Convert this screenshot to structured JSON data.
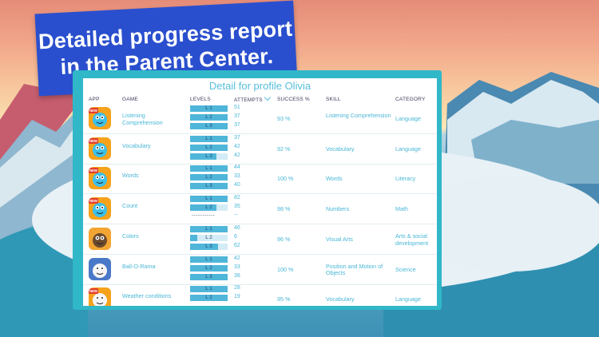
{
  "banner": {
    "line1": "Detailed progress report",
    "line2": "in the Parent Center."
  },
  "report": {
    "title": "Detail for profile Olivia",
    "headers": {
      "app": "APP",
      "game": "GAME",
      "levels": "LEVELS",
      "attempts": "ATTEMPTS",
      "success": "SUCCESS %",
      "skill": "SKILL",
      "category": "CATEGORY"
    },
    "rows": [
      {
        "game": "Listening Comprehension",
        "icon": "fish-character-icon",
        "badge": "NEW",
        "levels": [
          {
            "label": "L 1",
            "progress": 1.0,
            "attempts": "51"
          },
          {
            "label": "L 2",
            "progress": 1.0,
            "attempts": "37"
          },
          {
            "label": "L 3",
            "progress": 1.0,
            "attempts": "37"
          }
        ],
        "success": "93 %",
        "skill": "Listening Comprehension",
        "category": "Language"
      },
      {
        "game": "Vocabulary",
        "icon": "fish-character-icon",
        "badge": "NEW",
        "levels": [
          {
            "label": "L 1",
            "progress": 1.0,
            "attempts": "37"
          },
          {
            "label": "L 2",
            "progress": 1.0,
            "attempts": "42"
          },
          {
            "label": "L 3",
            "progress": 0.7,
            "attempts": "42"
          }
        ],
        "success": "92 %",
        "skill": "Vocabulary",
        "category": "Language"
      },
      {
        "game": "Words",
        "icon": "fish-character-icon",
        "badge": "NEW",
        "levels": [
          {
            "label": "L 1",
            "progress": 1.0,
            "attempts": "44"
          },
          {
            "label": "L 2",
            "progress": 1.0,
            "attempts": "33"
          },
          {
            "label": "L 3",
            "progress": 1.0,
            "attempts": "40"
          }
        ],
        "success": "100 %",
        "skill": "Words",
        "category": "Literacy"
      },
      {
        "game": "Count",
        "icon": "fish-character-icon",
        "badge": "NEW",
        "levels": [
          {
            "label": "L 1",
            "progress": 1.0,
            "attempts": "82"
          },
          {
            "label": "L 2",
            "progress": 0.7,
            "attempts": "35"
          }
        ],
        "no_level": {
          "label": "-----------",
          "attempts": "--"
        },
        "success": "98 %",
        "skill": "Numbers",
        "category": "Math"
      },
      {
        "game": "Colors",
        "icon": "girl-character-icon",
        "badge": "",
        "levels": [
          {
            "label": "L 1",
            "progress": 1.0,
            "attempts": "46"
          },
          {
            "label": "L 2",
            "progress": 0.2,
            "attempts": "6"
          },
          {
            "label": "L 3",
            "progress": 0.75,
            "attempts": "62"
          }
        ],
        "success": "96 %",
        "skill": "Visual Arts",
        "category": "Arts & social development"
      },
      {
        "game": "Ball-O-Rama",
        "icon": "bunnies-character-icon",
        "badge": "",
        "levels": [
          {
            "label": "L 1",
            "progress": 1.0,
            "attempts": "42"
          },
          {
            "label": "L 2",
            "progress": 1.0,
            "attempts": "33"
          },
          {
            "label": "L 3",
            "progress": 1.0,
            "attempts": "38"
          }
        ],
        "success": "100 %",
        "skill": "Position and Motion of Objects",
        "category": "Science"
      },
      {
        "game": "Weather conditions",
        "icon": "bunny-character-icon",
        "badge": "NEW",
        "levels": [
          {
            "label": "L 1",
            "progress": 1.0,
            "attempts": "28"
          },
          {
            "label": "L 2",
            "progress": 1.0,
            "attempts": "19"
          }
        ],
        "success": "95 %",
        "skill": "Vocabulary",
        "category": "Language"
      }
    ]
  }
}
